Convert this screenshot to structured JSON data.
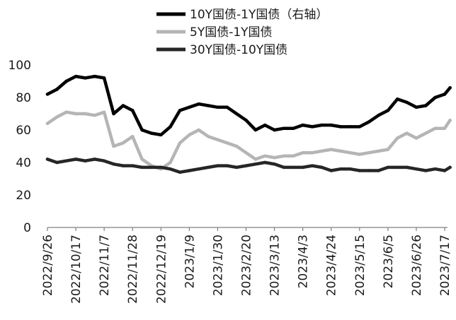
{
  "chart_data": {
    "type": "line",
    "title": "",
    "xlabel": "",
    "ylabel": "",
    "ylim": [
      0,
      100
    ],
    "y_ticks": [
      "0",
      "20",
      "40",
      "60",
      "80",
      "100"
    ],
    "x_ticks": [
      "2022/9/26",
      "2022/10/17",
      "2022/11/7",
      "2022/11/28",
      "2022/12/19",
      "2023/1/9",
      "2023/1/30",
      "2023/2/20",
      "2023/3/13",
      "2023/4/3",
      "2023/4/24",
      "2023/5/15",
      "2023/6/5",
      "2023/6/26",
      "2023/7/17"
    ],
    "grid": false,
    "legend_position": "top",
    "colors": {
      "s1": "#000000",
      "s2": "#b5b5b5",
      "s3": "#262626"
    },
    "x": [
      "2022/9/26",
      "2022/10/3",
      "2022/10/10",
      "2022/10/17",
      "2022/10/24",
      "2022/10/31",
      "2022/11/7",
      "2022/11/14",
      "2022/11/21",
      "2022/11/28",
      "2022/12/5",
      "2022/12/12",
      "2022/12/19",
      "2022/12/26",
      "2023/1/2",
      "2023/1/9",
      "2023/1/16",
      "2023/1/23",
      "2023/1/30",
      "2023/2/6",
      "2023/2/13",
      "2023/2/20",
      "2023/2/27",
      "2023/3/6",
      "2023/3/13",
      "2023/3/20",
      "2023/3/27",
      "2023/4/3",
      "2023/4/10",
      "2023/4/17",
      "2023/4/24",
      "2023/5/1",
      "2023/5/8",
      "2023/5/15",
      "2023/5/22",
      "2023/5/29",
      "2023/6/5",
      "2023/6/12",
      "2023/6/19",
      "2023/6/26",
      "2023/7/3",
      "2023/7/10",
      "2023/7/17",
      "2023/7/21"
    ],
    "series": [
      {
        "name": "10Y国债-1Y国债（右轴）",
        "color": "#000000",
        "width": 4.5,
        "values": [
          82,
          85,
          90,
          93,
          92,
          93,
          92,
          70,
          75,
          72,
          60,
          58,
          57,
          62,
          72,
          74,
          76,
          75,
          74,
          74,
          70,
          66,
          60,
          63,
          60,
          61,
          61,
          63,
          62,
          63,
          63,
          62,
          62,
          62,
          65,
          69,
          72,
          79,
          77,
          74,
          75,
          80,
          82,
          86
        ]
      },
      {
        "name": "5Y国债-1Y国债",
        "color": "#b5b5b5",
        "width": 4.5,
        "values": [
          64,
          68,
          71,
          70,
          70,
          69,
          71,
          50,
          52,
          56,
          42,
          38,
          36,
          40,
          52,
          57,
          60,
          56,
          54,
          52,
          50,
          46,
          42,
          44,
          43,
          44,
          44,
          46,
          46,
          47,
          48,
          47,
          46,
          45,
          46,
          47,
          48,
          55,
          58,
          55,
          58,
          61,
          61,
          66
        ]
      },
      {
        "name": "30Y国债-10Y国债",
        "color": "#262626",
        "width": 4.5,
        "values": [
          42,
          40,
          41,
          42,
          41,
          42,
          41,
          39,
          38,
          38,
          37,
          37,
          37,
          36,
          34,
          35,
          36,
          37,
          38,
          38,
          37,
          38,
          39,
          40,
          39,
          37,
          37,
          37,
          38,
          37,
          35,
          36,
          36,
          35,
          35,
          35,
          37,
          37,
          37,
          36,
          35,
          36,
          35,
          37
        ]
      }
    ]
  }
}
